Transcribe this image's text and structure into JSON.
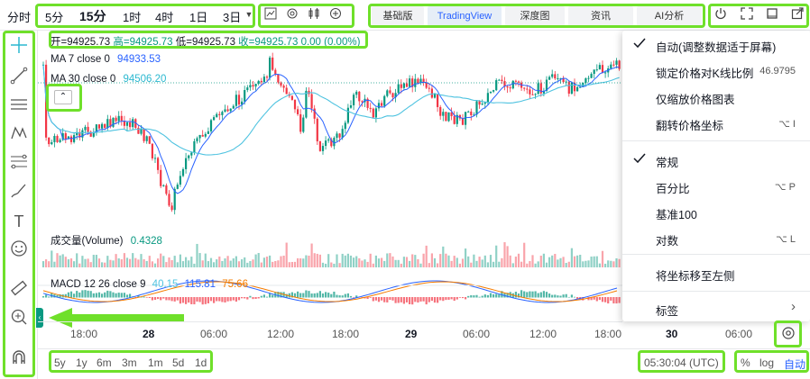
{
  "topbar": {
    "timeframes": [
      "分时",
      "5分",
      "15分",
      "1时",
      "4时",
      "1日",
      "3日"
    ],
    "active_timeframe": "15分",
    "view_tabs": [
      "基础版",
      "TradingView",
      "深度图",
      "资讯",
      "AI分析"
    ],
    "active_view": "TradingView"
  },
  "legend": {
    "ohlc": {
      "open": "开=94925.73",
      "high": "高=94925.73",
      "low": "低=94925.73",
      "close": "收=94925.73",
      "change": "0.00 (0.00%)"
    },
    "ma7_label": "MA 7 close 0",
    "ma7_value": "94933.53",
    "ma30_label": "MA 30 close 0",
    "ma30_value": "94506.20",
    "volume_label": "成交量(Volume)",
    "volume_value": "0.4328",
    "macd_label": "MACD 12 26 close 9",
    "macd_v1": "40.15",
    "macd_v2": "115.81",
    "macd_v3": "75.66"
  },
  "menu": {
    "items": [
      {
        "label": "自动(调整数据适于屏幕)",
        "checked": true,
        "shortcut": ""
      },
      {
        "label": "锁定价格对K线比例",
        "checked": false,
        "shortcut": "46.9795"
      },
      {
        "label": "仅缩放价格图表",
        "checked": false,
        "shortcut": ""
      },
      {
        "label": "翻转价格坐标",
        "checked": false,
        "shortcut": "⌥ I"
      },
      {
        "label": "常规",
        "checked": true,
        "shortcut": ""
      },
      {
        "label": "百分比",
        "checked": false,
        "shortcut": "⌥ P"
      },
      {
        "label": "基准100",
        "checked": false,
        "shortcut": ""
      },
      {
        "label": "对数",
        "checked": false,
        "shortcut": "⌥ L"
      },
      {
        "label": "将坐标移至左侧",
        "checked": false,
        "shortcut": ""
      },
      {
        "label": "标签",
        "checked": false,
        "shortcut": "›"
      }
    ]
  },
  "time_axis": {
    "labels": [
      "18:00",
      "28",
      "06:00",
      "12:00",
      "18:00",
      "29",
      "06:00",
      "12:00",
      "18:00",
      "30",
      "06:00"
    ],
    "bold": [
      "28",
      "29",
      "30"
    ]
  },
  "bottom": {
    "ranges": [
      "5y",
      "1y",
      "6m",
      "3m",
      "1m",
      "5d",
      "1d"
    ],
    "clock": "05:30:04 (UTC)",
    "scale_opts": [
      "%",
      "log",
      "自动"
    ]
  },
  "colors": {
    "up": "#089981",
    "down": "#f23645",
    "ma7": "#2962ff",
    "ma30": "#4fc3e0",
    "highlight": "#6fe02a",
    "accent": "#2962ff"
  }
}
